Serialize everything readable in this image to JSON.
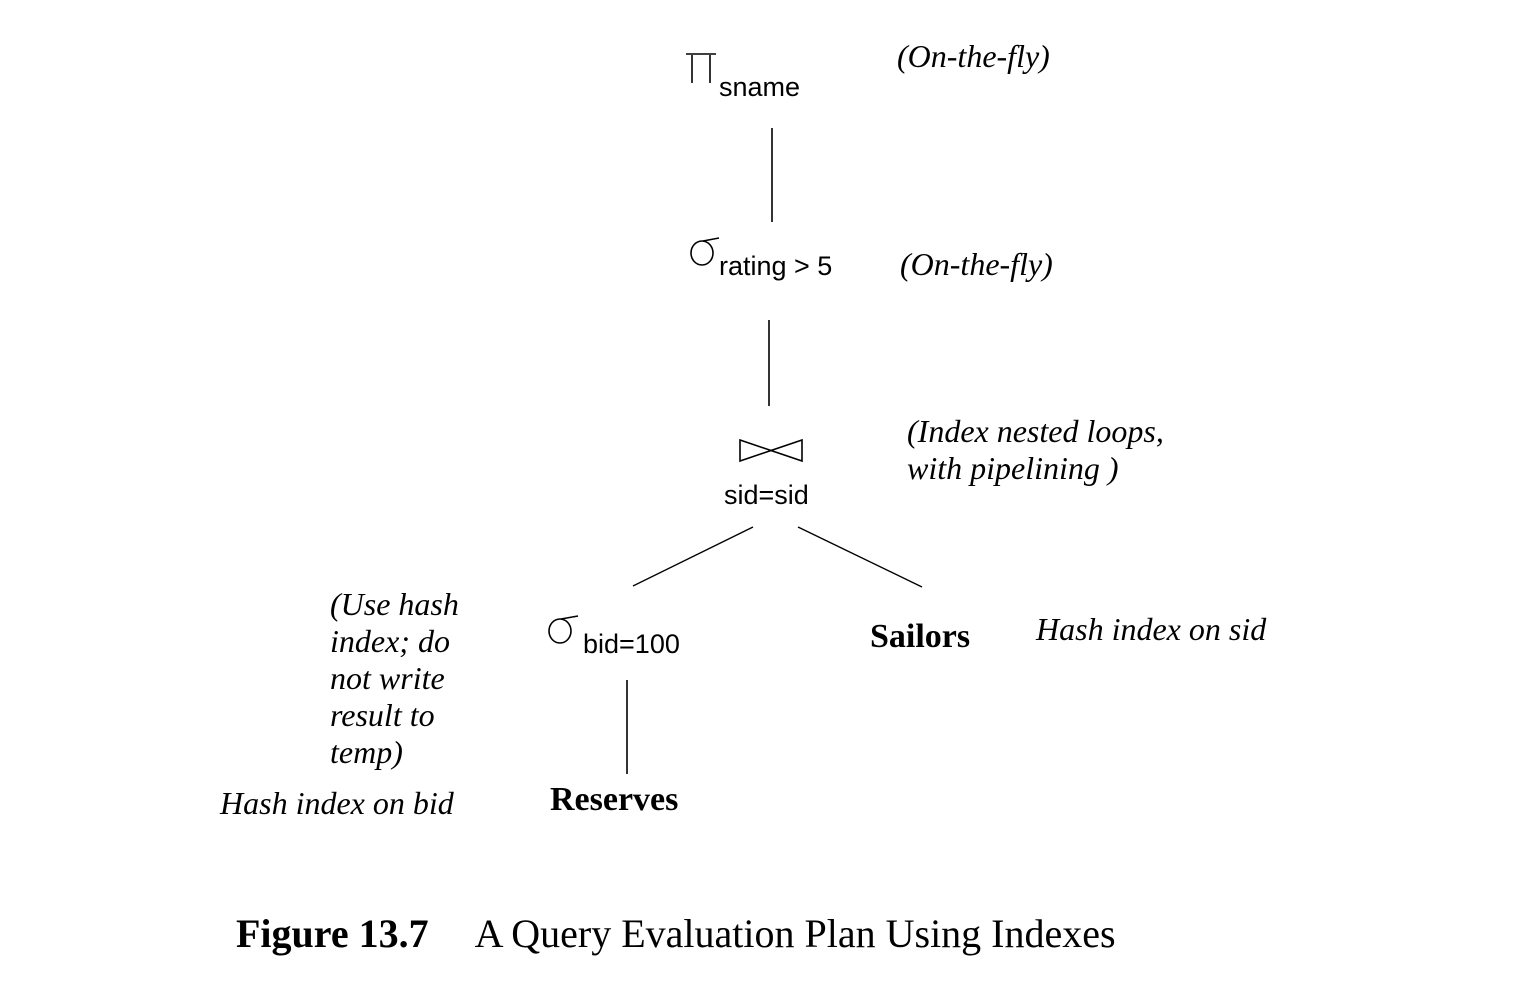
{
  "nodes": {
    "projection": {
      "operator": "project-symbol",
      "subscript": "sname",
      "annotation": "(On-the-fly)"
    },
    "selection_rating": {
      "operator": "sigma-symbol",
      "subscript": "rating > 5",
      "annotation": "(On-the-fly)"
    },
    "join": {
      "operator": "bowtie-symbol",
      "condition": "sid=sid",
      "annotation_lines": [
        "(Index nested loops,",
        "with pipelining )"
      ]
    },
    "selection_bid": {
      "operator": "sigma-symbol",
      "subscript": "bid=100",
      "annotation_lines": [
        "(Use hash",
        "index; do",
        "not write",
        "result to",
        "temp)"
      ]
    },
    "sailors": {
      "label": "Sailors",
      "annotation": "Hash index on sid"
    },
    "reserves": {
      "label": "Reserves",
      "annotation": "Hash index on bid"
    }
  },
  "caption": {
    "label": "Figure 13.7",
    "text": "A Query Evaluation Plan Using Indexes"
  }
}
